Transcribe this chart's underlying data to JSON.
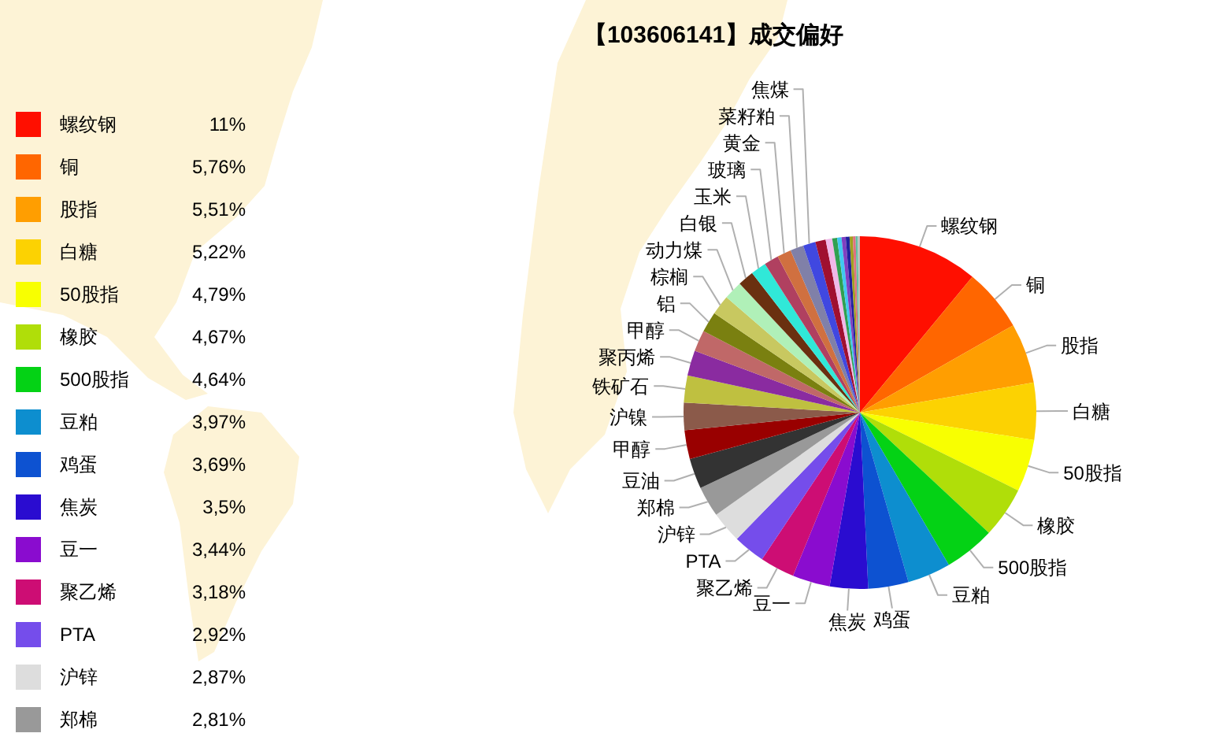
{
  "chart_data": {
    "type": "pie",
    "title": "【103606141】成交偏好",
    "categories": [
      "螺纹钢",
      "铜",
      "股指",
      "白糖",
      "50股指",
      "橡胶",
      "500股指",
      "豆粕",
      "鸡蛋",
      "焦炭",
      "豆一",
      "聚乙烯",
      "PTA",
      "沪锌",
      "郑棉",
      "豆油",
      "甲醇",
      "沪镍",
      "铁矿石",
      "聚丙烯",
      "甲醇",
      "铝",
      "棕榈",
      "动力煤",
      "白银",
      "玉米",
      "玻璃",
      "黄金",
      "菜籽粕",
      "焦煤",
      null,
      null,
      null,
      null,
      null,
      null,
      null,
      null,
      null,
      null
    ],
    "values": [
      11,
      5.76,
      5.51,
      5.22,
      4.79,
      4.67,
      4.64,
      3.97,
      3.69,
      3.5,
      3.44,
      3.18,
      2.92,
      2.87,
      2.81,
      2.78,
      2.64,
      2.52,
      2.47,
      2.31,
      1.95,
      1.9,
      1.8,
      1.72,
      1.47,
      1.42,
      1.33,
      1.29,
      1.22,
      1.14,
      0.95,
      0.6,
      0.45,
      0.4,
      0.38,
      0.35,
      0.3,
      0.25,
      0.2,
      0.19
    ],
    "colors": [
      "#ff0f00",
      "#ff6600",
      "#ff9e01",
      "#fcd202",
      "#f8ff01",
      "#b0de09",
      "#04d215",
      "#0d8ecf",
      "#0d52d1",
      "#2a0cd0",
      "#8a0ccf",
      "#cd0d74",
      "#754deb",
      "#dddddd",
      "#999999",
      "#333333",
      "#990000",
      "#8b5a4a",
      "#bfc040",
      "#8a2ba0",
      "#c06868",
      "#7a8010",
      "#c8c860",
      "#b0f0b8",
      "#6a3010",
      "#30e8d8",
      "#b04060",
      "#d07040",
      "#8080a8",
      "#4048e0",
      "#a01030",
      "#f0b8e8",
      "#30a050",
      "#40c8f0",
      "#8040c0",
      "#2020a0",
      "#a0a020",
      "#e07080",
      "#60c0a0",
      "#c0c0c0"
    ],
    "value_labels": [
      "11%",
      "5,76%",
      "5,51%",
      "5,22%",
      "4,79%",
      "4,67%",
      "4,64%",
      "3,97%",
      "3,69%",
      "3,5%",
      "3,44%",
      "3,18%",
      "2,92%",
      "2,87%",
      "2,81%",
      null,
      null,
      null,
      null,
      null,
      null,
      null,
      null,
      null,
      null,
      null,
      null,
      null,
      null,
      null,
      null,
      null,
      null,
      null,
      null,
      null,
      null,
      null,
      null,
      null
    ],
    "legend": "left"
  }
}
